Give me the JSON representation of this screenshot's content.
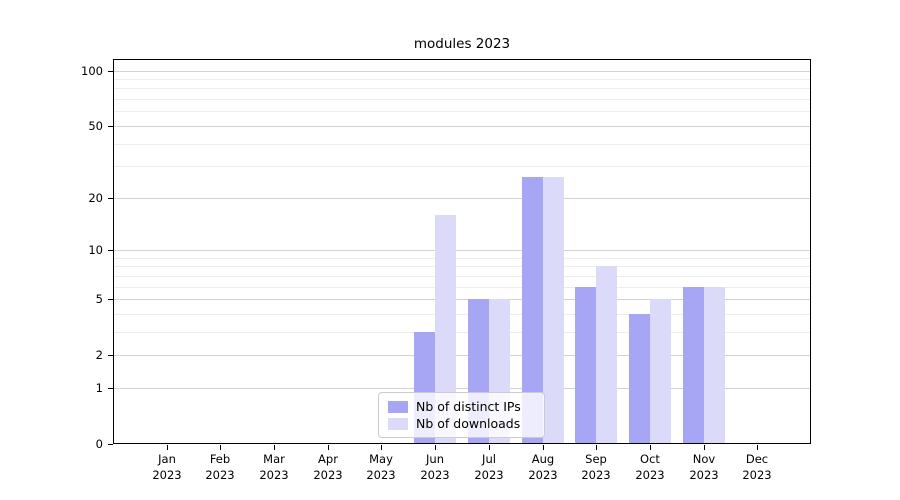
{
  "title": "modules 2023",
  "chart_data": {
    "type": "bar",
    "title": "modules 2023",
    "x_tick_months": [
      "Jan",
      "Feb",
      "Mar",
      "Apr",
      "May",
      "Jun",
      "Jul",
      "Aug",
      "Sep",
      "Oct",
      "Nov",
      "Dec"
    ],
    "x_tick_year": "2023",
    "series": [
      {
        "name": "Nb of distinct IPs",
        "color": "#a6a6f5",
        "values": [
          0,
          0,
          0,
          0,
          0,
          3,
          5,
          26,
          6,
          4,
          6,
          0
        ]
      },
      {
        "name": "Nb of downloads",
        "color": "#dbdbf9",
        "values": [
          0,
          0,
          0,
          0,
          0,
          16,
          5,
          26,
          8,
          5,
          6,
          0
        ]
      }
    ],
    "yscale": "log1p",
    "ylim": [
      0,
      112
    ],
    "yticks": [
      0,
      1,
      2,
      5,
      10,
      20,
      50,
      100
    ],
    "ytick_labels": [
      "0",
      "1",
      "2",
      "5",
      "10",
      "20",
      "50",
      "100"
    ],
    "yticks_minor": [
      3,
      4,
      6,
      7,
      8,
      9,
      30,
      40,
      60,
      70,
      80,
      90
    ],
    "grid": true,
    "legend_position": "lower center",
    "colors": {
      "major_grid": "#d2d2d2",
      "minor_grid": "#ededed",
      "spine": "#000000",
      "text": "#000000",
      "legend_border": "#cccccc"
    }
  }
}
